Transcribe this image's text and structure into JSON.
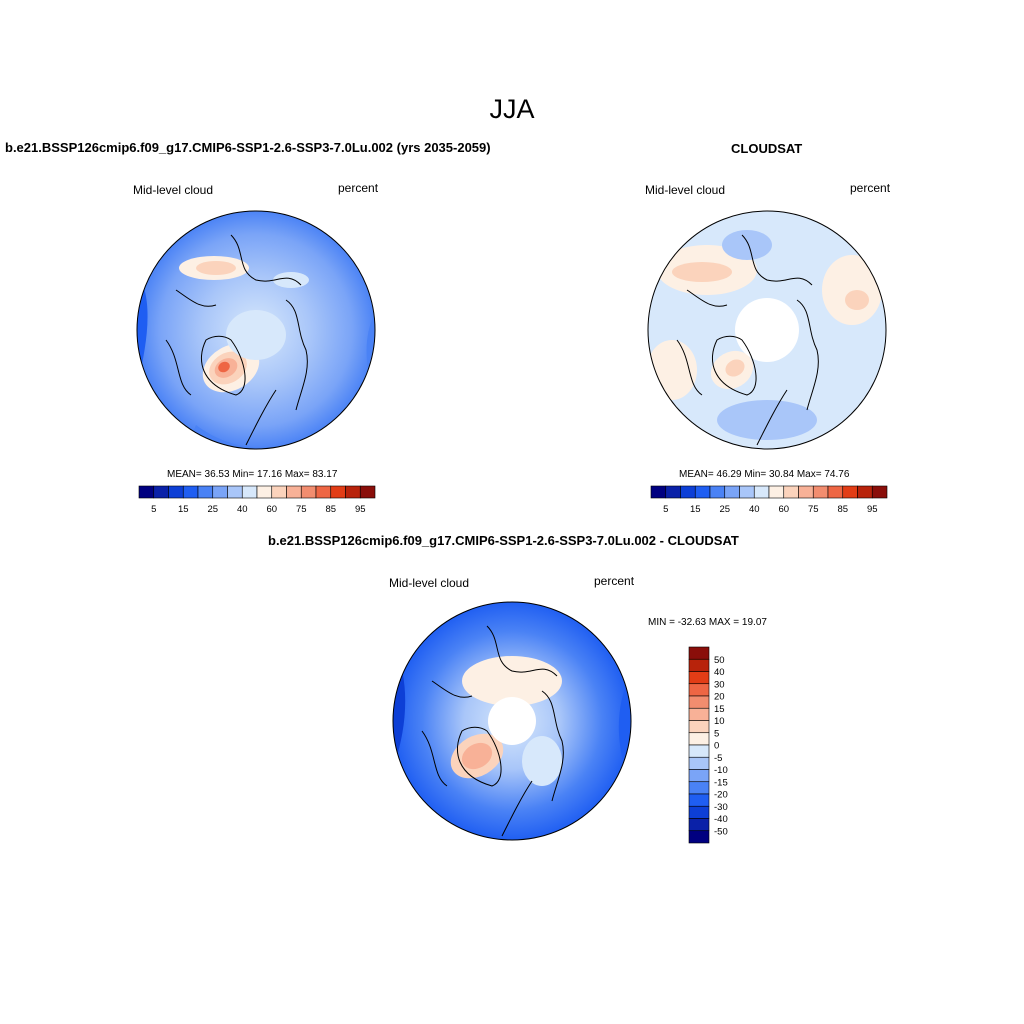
{
  "figure": {
    "season": "JJA",
    "panels": [
      {
        "title": "b.e21.BSSP126cmip6.f09_g17.CMIP6-SSP1-2.6-SSP3-7.0Lu.002 (yrs 2035-2059)",
        "variable_label": "Mid-level cloud",
        "units_label": "percent",
        "stats": "MEAN=  36.53  Min=  17.16  Max=  83.17",
        "pole_masked": false
      },
      {
        "title": "CLOUDSAT",
        "variable_label": "Mid-level cloud",
        "units_label": "percent",
        "stats": "MEAN=  46.29  Min=  30.84  Max=  74.76",
        "pole_masked": true
      },
      {
        "title": "b.e21.BSSP126cmip6.f09_g17.CMIP6-SSP1-2.6-SSP3-7.0Lu.002 - CLOUDSAT",
        "variable_label": "Mid-level cloud",
        "units_label": "percent",
        "stats": "MIN = -32.63 MAX =  19.07",
        "pole_masked": true
      }
    ],
    "abs_colorbar": {
      "colors": [
        "#000080",
        "#0a21a8",
        "#0d3fd6",
        "#1f5ef2",
        "#4a82f5",
        "#7aa4f7",
        "#a9c6f9",
        "#d7e8fb",
        "#fdf0e4",
        "#fbd3bc",
        "#f8b197",
        "#f28d6f",
        "#ee6644",
        "#e23d16",
        "#b8230b",
        "#8a0e0a"
      ],
      "tick_labels": [
        "5",
        "15",
        "25",
        "40",
        "60",
        "75",
        "85",
        "95"
      ]
    },
    "diff_colorbar": {
      "colors": [
        "#8a0e0a",
        "#b8230b",
        "#e23d16",
        "#ee6644",
        "#f28d6f",
        "#f8b197",
        "#fbd3bc",
        "#fdf0e4",
        "#d7e8fb",
        "#a9c6f9",
        "#7aa4f7",
        "#4a82f5",
        "#1f5ef2",
        "#0d3fd6",
        "#0a21a8",
        "#000080"
      ],
      "tick_labels": [
        "50",
        "40",
        "30",
        "20",
        "15",
        "10",
        "5",
        "0",
        "-5",
        "-10",
        "-15",
        "-20",
        "-30",
        "-40",
        "-50"
      ]
    }
  }
}
